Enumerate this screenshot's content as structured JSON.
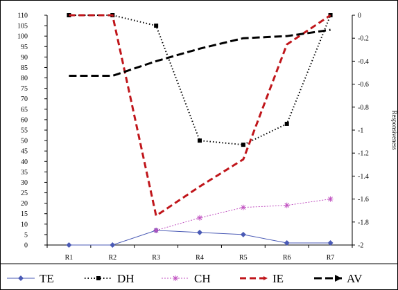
{
  "chart_data": {
    "type": "line",
    "categories": [
      "R1",
      "R2",
      "R3",
      "R4",
      "R5",
      "R6",
      "R7"
    ],
    "y_left": {
      "range": [
        0,
        110
      ],
      "ticks": [
        0,
        5,
        10,
        15,
        20,
        25,
        30,
        35,
        40,
        45,
        50,
        55,
        60,
        65,
        70,
        75,
        80,
        85,
        90,
        95,
        100,
        105,
        110
      ]
    },
    "y_right": {
      "range": [
        -2,
        0
      ],
      "label": "Responsiveness",
      "ticks": [
        "0",
        "-0.2",
        "-0.4",
        "-0.6",
        "-0.8",
        "-1",
        "-1.2",
        "-1.4",
        "-1.6",
        "-1.8",
        "-2"
      ],
      "tick_values": [
        0,
        -0.2,
        -0.4,
        -0.6,
        -0.8,
        -1,
        -1.2,
        -1.4,
        -1.6,
        -1.8,
        -2
      ]
    },
    "grid": false,
    "legend_position": "bottom",
    "series": [
      {
        "name": "TE",
        "axis": "left",
        "color": "#4a5ab5",
        "values": [
          0,
          0,
          7,
          6,
          5,
          1,
          1
        ]
      },
      {
        "name": "DH",
        "axis": "left",
        "color": "#000000",
        "values": [
          110,
          110,
          105,
          50,
          48,
          58,
          110
        ]
      },
      {
        "name": "CH",
        "axis": "left",
        "color": "#c050c0",
        "values": [
          null,
          null,
          7,
          13,
          18,
          19,
          22
        ]
      },
      {
        "name": "IE",
        "axis": "left",
        "color": "#c0161b",
        "values": [
          110,
          110,
          14,
          28,
          41,
          96,
          110
        ]
      },
      {
        "name": "AV",
        "axis": "left",
        "color": "#000000",
        "values": [
          81,
          81,
          88,
          94,
          99,
          100,
          103
        ]
      }
    ]
  }
}
